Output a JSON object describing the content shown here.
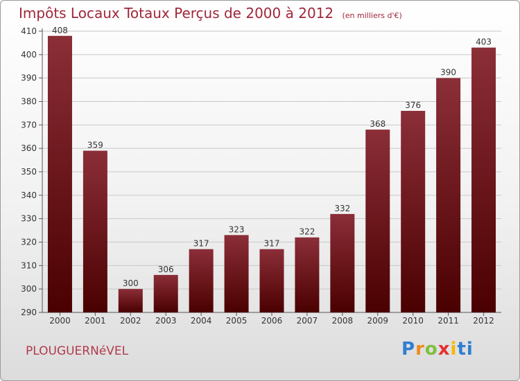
{
  "title": {
    "main": "Impôts Locaux Totaux Perçus de 2000 à 2012",
    "unit": "(en milliers d'€)"
  },
  "commune": "PLOUGUERNéVEL",
  "logo": {
    "letters": [
      "P",
      "r",
      "o",
      "x",
      "i",
      "ti"
    ]
  },
  "colors": {
    "bar_top": "#8b2e38",
    "bar_bottom": "#4a0000",
    "title": "#a0263a",
    "grid": "#c8c8c8"
  },
  "chart_data": {
    "type": "bar",
    "title": "Impôts Locaux Totaux Perçus de 2000 à 2012",
    "unit_label": "(en milliers d'€)",
    "categories": [
      "2000",
      "2001",
      "2002",
      "2003",
      "2004",
      "2005",
      "2006",
      "2007",
      "2008",
      "2009",
      "2010",
      "2011",
      "2012"
    ],
    "values": [
      408,
      359,
      300,
      306,
      317,
      323,
      317,
      322,
      332,
      368,
      376,
      390,
      403
    ],
    "ylim": [
      290,
      410
    ],
    "yticks": [
      290,
      300,
      310,
      320,
      330,
      340,
      350,
      360,
      370,
      380,
      390,
      400,
      410
    ],
    "grid": true,
    "xlabel": "",
    "ylabel": ""
  }
}
